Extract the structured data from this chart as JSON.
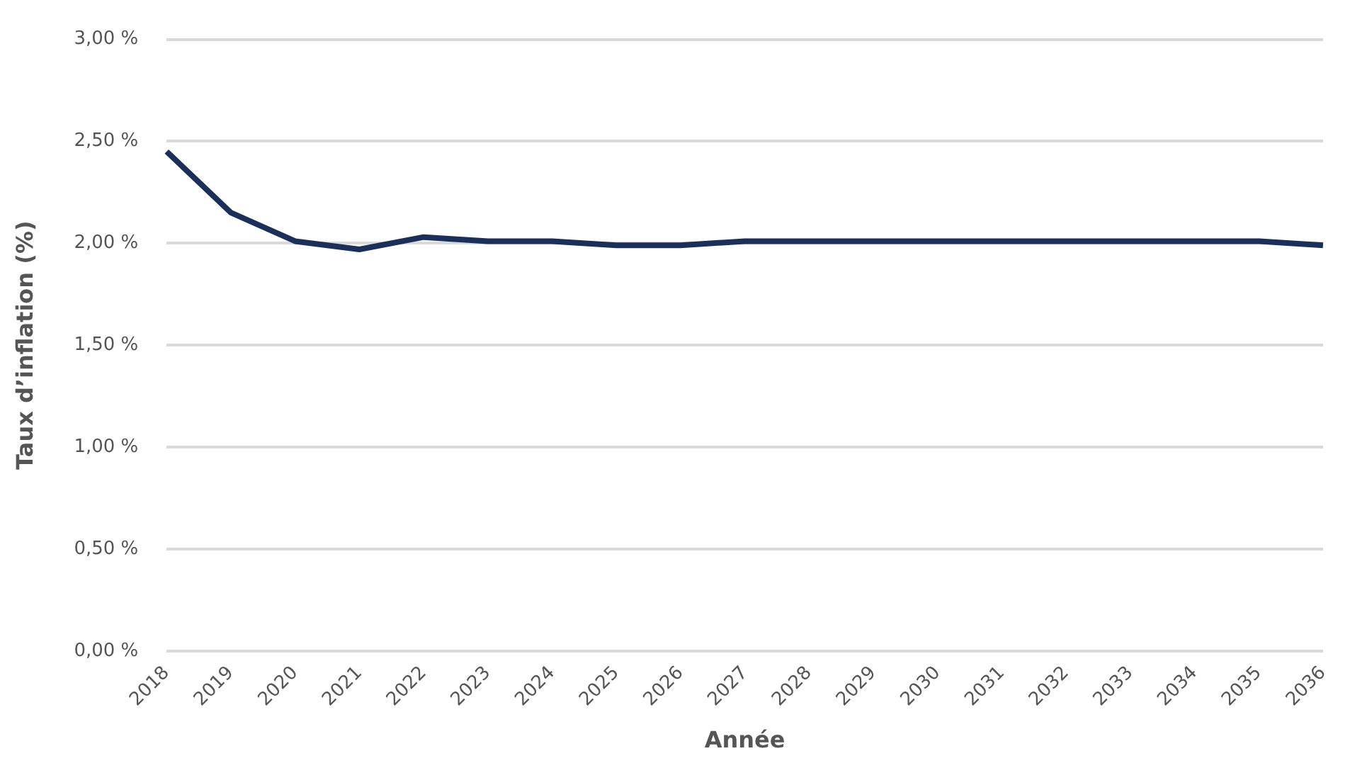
{
  "chart_data": {
    "type": "line",
    "xlabel": "Année",
    "ylabel": "Taux d’inflation (%)",
    "categories": [
      "2018",
      "2019",
      "2020",
      "2021",
      "2022",
      "2023",
      "2024",
      "2025",
      "2026",
      "2027",
      "2028",
      "2029",
      "2030",
      "2031",
      "2032",
      "2033",
      "2034",
      "2035",
      "2036"
    ],
    "series": [
      {
        "color": "#1b2f5b",
        "values": [
          2.45,
          2.15,
          2.01,
          1.97,
          2.03,
          2.01,
          2.01,
          1.99,
          1.99,
          2.01,
          2.01,
          2.01,
          2.01,
          2.01,
          2.01,
          2.01,
          2.01,
          2.01,
          1.99
        ]
      }
    ],
    "ylim": [
      0,
      3
    ],
    "yticks": [
      {
        "value": 0,
        "label": "0,00 %"
      },
      {
        "value": 0.5,
        "label": "0,50 %"
      },
      {
        "value": 1,
        "label": "1,00 %"
      },
      {
        "value": 1.5,
        "label": "1,50 %"
      },
      {
        "value": 2,
        "label": "2,00 %"
      },
      {
        "value": 2.5,
        "label": "2,50 %"
      },
      {
        "value": 3,
        "label": "3,00 %"
      }
    ],
    "grid": "y",
    "legend": false,
    "marker": "none",
    "line_style": "solid"
  }
}
